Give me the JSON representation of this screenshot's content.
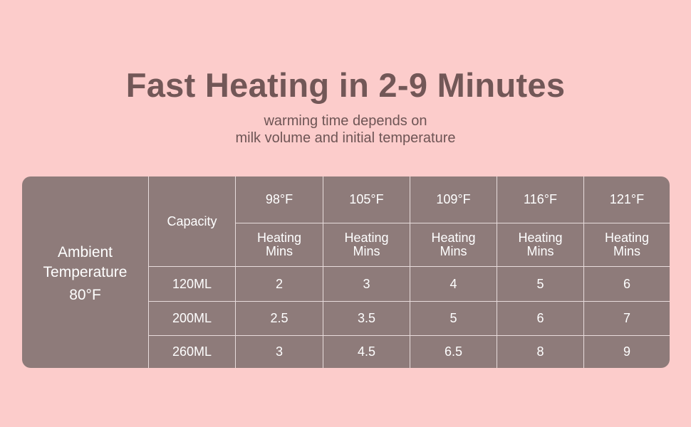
{
  "header": {
    "title": "Fast Heating in 2-9 Minutes",
    "subtitle_line1": "warming time depends on",
    "subtitle_line2": "milk volume and initial temperature"
  },
  "table": {
    "ambient_line1": "Ambient",
    "ambient_line2": "Temperature",
    "ambient_line3": "80°F",
    "capacity_label": "Capacity",
    "temperatures": [
      "98°F",
      "105°F",
      "109°F",
      "116°F",
      "121°F"
    ],
    "heating_line1": "Heating",
    "heating_line2": "Mins",
    "rows": [
      {
        "capacity": "120ML",
        "values": [
          "2",
          "3",
          "4",
          "5",
          "6"
        ]
      },
      {
        "capacity": "200ML",
        "values": [
          "2.5",
          "3.5",
          "5",
          "6",
          "7"
        ]
      },
      {
        "capacity": "260ML",
        "values": [
          "3",
          "4.5",
          "6.5",
          "8",
          "9"
        ]
      }
    ]
  },
  "colors": {
    "background": "#fccccb",
    "table_fill": "#8e7b7a",
    "title": "#725757",
    "grid": "#e8dcdc"
  }
}
